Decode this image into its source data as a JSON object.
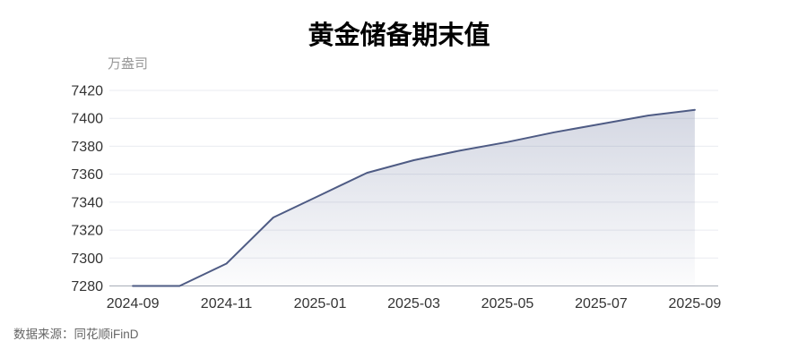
{
  "header": {
    "title": "黄金储备期末值"
  },
  "footer": {
    "source": "数据来源：同花顺iFinD"
  },
  "chart_data": {
    "type": "area",
    "title": "黄金储备期末值",
    "unit_label": "万盎司",
    "x": [
      "2024-09",
      "2024-10",
      "2024-11",
      "2024-12",
      "2025-01",
      "2025-02",
      "2025-03",
      "2025-04",
      "2025-05",
      "2025-06",
      "2025-07",
      "2025-08",
      "2025-09"
    ],
    "values": [
      7280,
      7280,
      7296,
      7329,
      7345,
      7361,
      7370,
      7377,
      7383,
      7390,
      7396,
      7402,
      7406
    ],
    "y_ticks": [
      7280,
      7300,
      7320,
      7340,
      7360,
      7380,
      7400,
      7420
    ],
    "ylim": [
      7280,
      7420
    ],
    "x_tick_every": 2,
    "grid": true,
    "legend": "none",
    "colors": {
      "line": "#4e5b84",
      "fill_top": "rgba(90,103,146,0.26)",
      "fill_bottom": "rgba(90,103,146,0.02)",
      "gridline": "#e9ebf0",
      "axis_line": "#a7adb8",
      "tick_label": "#333333",
      "unit_label": "#999999",
      "source_label": "#666666",
      "title": "#000000"
    }
  }
}
